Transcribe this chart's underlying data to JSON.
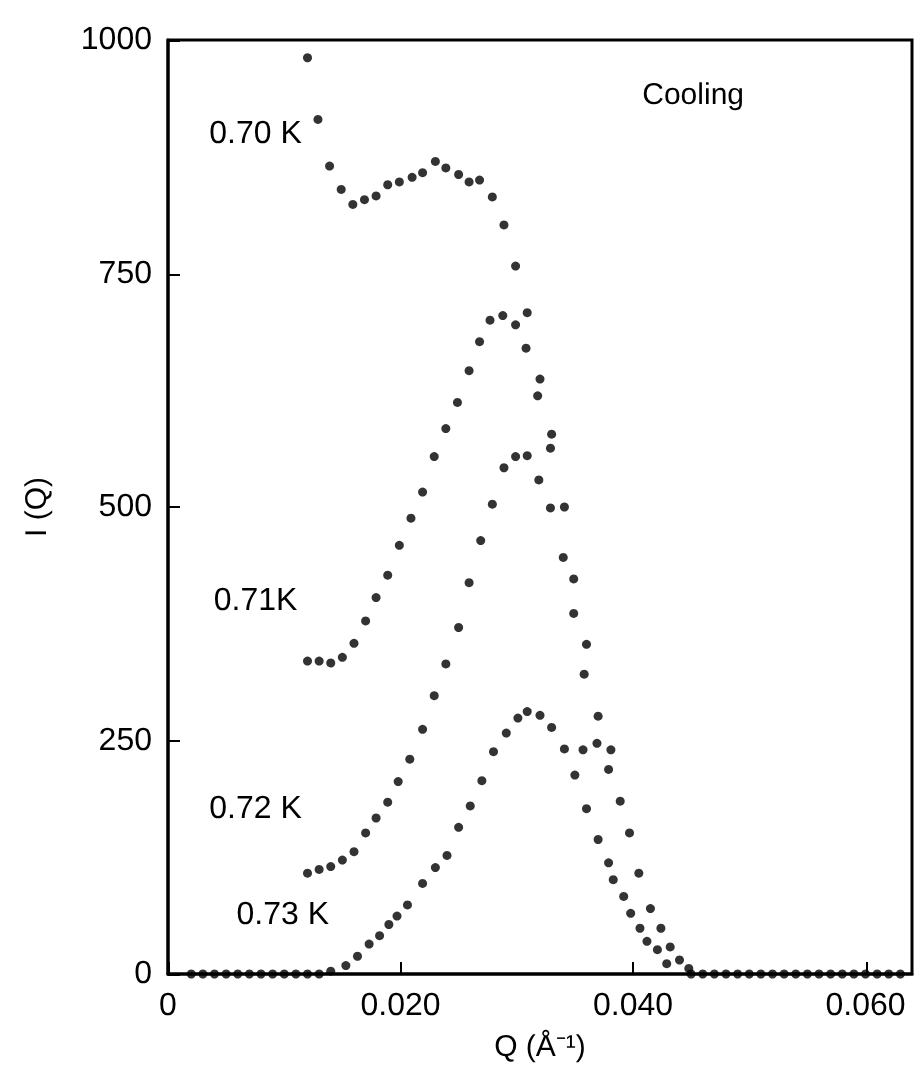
{
  "chart_data": {
    "type": "scatter",
    "xlabel": "Q (Å⁻¹)",
    "ylabel": "I (Q)",
    "annotations": [
      "Cooling"
    ],
    "marker": "circle",
    "grid": false,
    "legend": false,
    "xlim": [
      0,
      0.064
    ],
    "xticks": [
      0,
      {
        "value": 0.02,
        "label": "0.020"
      },
      {
        "value": 0.04,
        "label": "0.040"
      },
      {
        "value": 0.06,
        "label": "0.060"
      }
    ],
    "ylim": [
      0,
      1000
    ],
    "yticks": [
      0,
      250,
      500,
      750,
      1000
    ],
    "series": [
      {
        "name": "0.70 K",
        "color": "#000000",
        "x": [
          0.012,
          0.0129,
          0.0139,
          0.0149,
          0.0159,
          0.0169,
          0.0179,
          0.0189,
          0.0199,
          0.021,
          0.0219,
          0.023,
          0.0239,
          0.025,
          0.0259,
          0.0268,
          0.0279,
          0.0289,
          0.0299,
          0.0309,
          0.032,
          0.033,
          0.0341,
          0.0349,
          0.036,
          0.037,
          0.0381,
          0.0389,
          0.0397,
          0.0405,
          0.0415,
          0.0424,
          0.0432,
          0.044,
          0.0448
        ],
        "values": [
          981,
          915,
          865,
          840,
          824,
          829,
          833,
          845,
          848,
          853,
          858,
          870,
          863,
          856,
          848,
          850,
          832,
          802,
          758,
          708,
          637,
          578,
          500,
          423,
          353,
          276,
          240,
          185,
          151,
          108,
          70,
          49,
          29,
          15,
          6
        ]
      },
      {
        "name": "0.71K",
        "color": "#000000",
        "x": [
          0.012,
          0.013,
          0.014,
          0.015,
          0.016,
          0.017,
          0.0179,
          0.0189,
          0.0199,
          0.0209,
          0.0219,
          0.0229,
          0.0239,
          0.0249,
          0.0259,
          0.0268,
          0.0277,
          0.0288,
          0.0299,
          0.0308,
          0.0318,
          0.0329,
          0.034,
          0.0349,
          0.0358,
          0.0369,
          0.0379
        ],
        "values": [
          335,
          335,
          333,
          339,
          354,
          378,
          403,
          427,
          459,
          488,
          516,
          554,
          584,
          612,
          646,
          677,
          700,
          705,
          695,
          670,
          619,
          563,
          446,
          386,
          321,
          247,
          219
        ]
      },
      {
        "name": "0.72 K",
        "color": "#000000",
        "x": [
          0.012,
          0.013,
          0.014,
          0.015,
          0.016,
          0.017,
          0.0179,
          0.0189,
          0.0198,
          0.0208,
          0.0219,
          0.0229,
          0.0239,
          0.025,
          0.0259,
          0.0269,
          0.0279,
          0.0289,
          0.0299,
          0.0309,
          0.0319,
          0.0329,
          0.0357
        ],
        "values": [
          108,
          112,
          115,
          122,
          131,
          151,
          167,
          184,
          206,
          230,
          262,
          298,
          332,
          371,
          419,
          464,
          503,
          542,
          554,
          555,
          529,
          499,
          240
        ]
      },
      {
        "name": "0.73 K",
        "color": "#000000",
        "x": [
          0.002,
          0.003,
          0.004,
          0.005,
          0.006,
          0.007,
          0.008,
          0.009,
          0.01,
          0.011,
          0.012,
          0.013,
          0.014,
          0.0153,
          0.0163,
          0.0173,
          0.0182,
          0.019,
          0.0197,
          0.0206,
          0.0219,
          0.023,
          0.024,
          0.025,
          0.026,
          0.027,
          0.028,
          0.0291,
          0.0301,
          0.0309,
          0.032,
          0.033,
          0.0341,
          0.035,
          0.036,
          0.037,
          0.0379,
          0.0383,
          0.0392,
          0.0398,
          0.0406,
          0.0412,
          0.0421,
          0.0429,
          0.045,
          0.046,
          0.047,
          0.048,
          0.049,
          0.05,
          0.051,
          0.052,
          0.053,
          0.054,
          0.055,
          0.056,
          0.057,
          0.058,
          0.059,
          0.06,
          0.061,
          0.062,
          0.063
        ],
        "values": [
          0,
          0,
          0,
          0,
          0,
          0,
          0,
          0,
          0,
          0,
          0,
          0,
          3,
          9,
          19,
          32,
          41,
          53,
          62,
          74,
          97,
          114,
          127,
          157,
          180,
          207,
          238,
          258,
          274,
          281,
          277,
          264,
          241,
          213,
          177,
          144,
          119,
          101,
          83,
          65,
          49,
          35,
          26,
          11,
          0,
          0,
          0,
          0,
          0,
          0,
          0,
          0,
          0,
          0,
          0,
          0,
          0,
          0,
          0,
          0,
          0,
          0,
          0
        ]
      }
    ]
  }
}
